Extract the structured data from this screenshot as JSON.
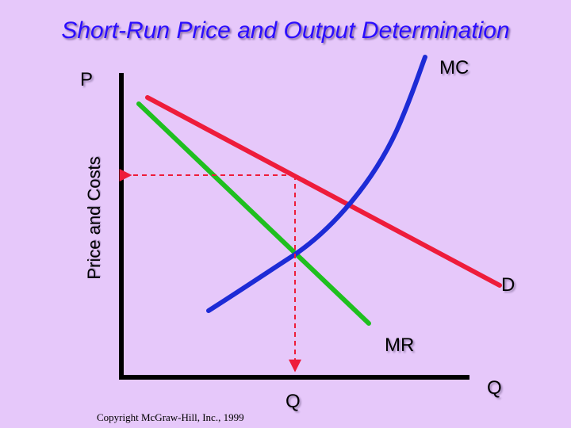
{
  "title": "Short-Run Price and Output Determination",
  "y_axis_label": "Price and Costs",
  "y_axis_symbol": "P",
  "x_axis_symbol": "Q",
  "equilibrium_quantity_label": "Q",
  "curves": {
    "mc": {
      "label": "MC",
      "color": "#1d2bd6"
    },
    "demand": {
      "label": "D",
      "color": "#ee1c3b"
    },
    "mr": {
      "label": "MR",
      "color": "#1fbf1f"
    }
  },
  "guide_color": "#ee1c3b",
  "axis_color": "#000000",
  "copyright": "Copyright McGraw-Hill, Inc., 1999"
}
